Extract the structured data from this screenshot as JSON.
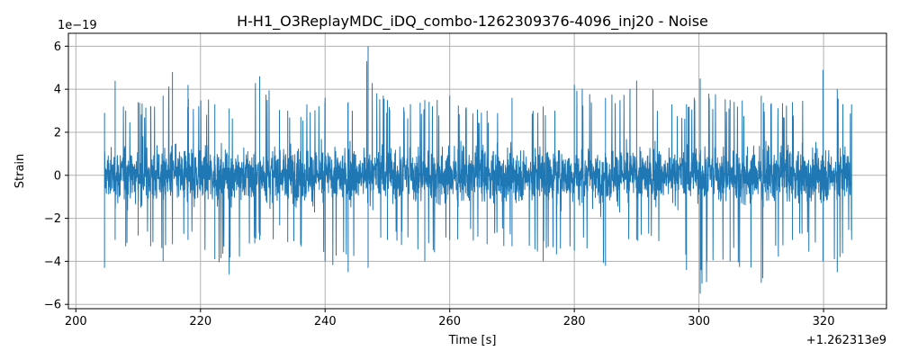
{
  "chart_data": {
    "type": "line",
    "title": "H-H1_O3ReplayMDC_iDQ_combo-1262309376-4096_inj20 - Noise",
    "xlabel": "Time [s]",
    "ylabel": "Strain",
    "x_offset_label": "+1.262313e9",
    "y_scale_label": "1e−19",
    "xlim": [
      198.8,
      330.1
    ],
    "ylim": [
      -6.2,
      6.6
    ],
    "x_ticks": [
      200,
      220,
      240,
      260,
      280,
      300,
      320
    ],
    "x_tick_labels": [
      "200",
      "220",
      "240",
      "260",
      "280",
      "300",
      "320"
    ],
    "y_ticks": [
      -6,
      -4,
      -2,
      0,
      2,
      4,
      6
    ],
    "y_tick_labels": [
      "−6",
      "−4",
      "−2",
      "0",
      "2",
      "4",
      "6"
    ],
    "grid": true,
    "series": [
      {
        "color": "#1f77b4",
        "x_range": [
          204.6,
          324.5
        ],
        "envelope": [
          {
            "x": 204.6,
            "min": -4.3,
            "max": 2.9
          },
          {
            "x": 206.3,
            "min": -3.0,
            "max": 4.4
          },
          {
            "x": 208.0,
            "min": -3.3,
            "max": 3.0
          },
          {
            "x": 210.0,
            "min": -2.8,
            "max": 3.4
          },
          {
            "x": 212.0,
            "min": -3.3,
            "max": 3.2
          },
          {
            "x": 214.0,
            "min": -4.0,
            "max": 3.7
          },
          {
            "x": 215.5,
            "min": -3.2,
            "max": 4.8
          },
          {
            "x": 218.0,
            "min": -3.0,
            "max": 4.2
          },
          {
            "x": 222.3,
            "min": -3.9,
            "max": 3.3
          },
          {
            "x": 224.6,
            "min": -4.6,
            "max": 3.1
          },
          {
            "x": 229.5,
            "min": -3.0,
            "max": 4.6
          },
          {
            "x": 234.0,
            "min": -3.1,
            "max": 3.0
          },
          {
            "x": 240.0,
            "min": -4.0,
            "max": 3.6
          },
          {
            "x": 243.7,
            "min": -4.5,
            "max": 3.4
          },
          {
            "x": 246.9,
            "min": -4.3,
            "max": 6.0
          },
          {
            "x": 250.0,
            "min": -3.0,
            "max": 3.5
          },
          {
            "x": 256.0,
            "min": -4.0,
            "max": 3.5
          },
          {
            "x": 260.0,
            "min": -3.0,
            "max": 3.7
          },
          {
            "x": 266.0,
            "min": -3.2,
            "max": 3.0
          },
          {
            "x": 270.0,
            "min": -3.3,
            "max": 3.6
          },
          {
            "x": 275.0,
            "min": -4.0,
            "max": 3.2
          },
          {
            "x": 280.0,
            "min": -3.5,
            "max": 4.2
          },
          {
            "x": 285.0,
            "min": -4.2,
            "max": 3.6
          },
          {
            "x": 290.0,
            "min": -3.0,
            "max": 4.4
          },
          {
            "x": 298.0,
            "min": -4.4,
            "max": 3.3
          },
          {
            "x": 300.2,
            "min": -5.5,
            "max": 4.5
          },
          {
            "x": 305.0,
            "min": -4.0,
            "max": 3.5
          },
          {
            "x": 310.0,
            "min": -5.0,
            "max": 3.7
          },
          {
            "x": 315.0,
            "min": -3.0,
            "max": 3.4
          },
          {
            "x": 319.9,
            "min": -4.0,
            "max": 4.9
          },
          {
            "x": 322.2,
            "min": -4.5,
            "max": 4.0
          },
          {
            "x": 324.5,
            "min": -3.0,
            "max": 3.3
          }
        ]
      }
    ]
  }
}
